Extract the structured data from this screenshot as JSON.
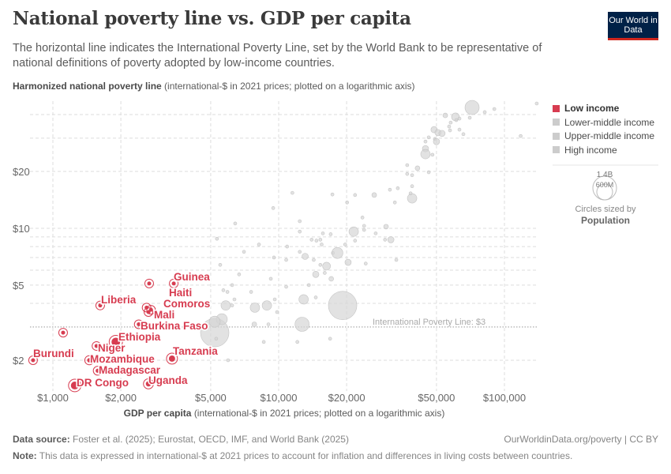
{
  "header": {
    "title": "National poverty line vs. GDP per capita",
    "subtitle": "The horizontal line indicates the International Poverty Line, set by the World Bank to be representative of national definitions of poverty adopted by low-income countries.",
    "logo_text": "Our World in Data"
  },
  "footer": {
    "source_label": "Data source:",
    "source_text": "Foster et al. (2025); Eurostat, OECD, IMF, and World Bank (2025)",
    "url": "OurWorldinData.org/poverty | CC BY",
    "note_label": "Note:",
    "note_text": "This data is expressed in international-$ at 2021 prices to account for inflation and differences in living costs between countries."
  },
  "chart_data": {
    "type": "scatter",
    "title": "National poverty line vs. GDP per capita",
    "ylabel_bold": "Harmonized national poverty line",
    "ylabel_rest": "(international-$ in 2021 prices; plotted on a logarithmic axis)",
    "xlabel_bold": "GDP per capita",
    "xlabel_rest": "(international-$ in 2021 prices; plotted on a logarithmic axis)",
    "x_scale": "log",
    "y_scale": "log",
    "xlim": [
      790,
      141000
    ],
    "ylim": [
      1.37,
      47
    ],
    "grid": true,
    "x_ticks": [
      {
        "v": 1000,
        "label": "$1,000"
      },
      {
        "v": 2000,
        "label": "$2,000"
      },
      {
        "v": 5000,
        "label": "$5,000"
      },
      {
        "v": 10000,
        "label": "$10,000"
      },
      {
        "v": 20000,
        "label": "$20,000"
      },
      {
        "v": 50000,
        "label": "$50,000"
      },
      {
        "v": 100000,
        "label": "$100,000"
      }
    ],
    "y_ticks": [
      {
        "v": 20,
        "label": "$20"
      },
      {
        "v": 10,
        "label": "$10"
      },
      {
        "v": 5,
        "label": "$5"
      },
      {
        "v": 2,
        "label": "$2"
      }
    ],
    "y_minor_grid": [
      40,
      30,
      9,
      8,
      7,
      6,
      4
    ],
    "reference_line": {
      "value": 3,
      "label": "International Poverty Line: $3"
    },
    "legend": {
      "placement": "right",
      "items": [
        {
          "label": "Low income",
          "color": "#d73c50",
          "active": true
        },
        {
          "label": "Lower-middle income",
          "color": "#cccccc",
          "active": false
        },
        {
          "label": "Upper-middle income",
          "color": "#cccccc",
          "active": false
        },
        {
          "label": "High income",
          "color": "#cccccc",
          "active": false
        }
      ],
      "size_title": "Circles sized by",
      "size_variable": "Population",
      "size_big_label": "1.4B",
      "size_small_label": "600M"
    },
    "point_fields": [
      "gdp_per_capita",
      "poverty_line",
      "population_millions"
    ],
    "low_income": [
      {
        "name": "Burundi",
        "x": 817,
        "y": 2.0,
        "pop": 13
      },
      {
        "name": "DR Congo",
        "x": 1250,
        "y": 1.47,
        "pop": 105
      },
      {
        "name": "Madagascar",
        "x": 1580,
        "y": 1.76,
        "pop": 30
      },
      {
        "name": "Mozambique",
        "x": 1450,
        "y": 2.0,
        "pop": 33
      },
      {
        "name": "Niger",
        "x": 1560,
        "y": 2.38,
        "pop": 26
      },
      {
        "name": "Ethiopia",
        "x": 1900,
        "y": 2.5,
        "pop": 126
      },
      {
        "name": "Burkina Faso",
        "x": 2400,
        "y": 3.1,
        "pop": 23
      },
      {
        "name": "Mali",
        "x": 2650,
        "y": 3.6,
        "pop": 24
      },
      {
        "name": "Comoros",
        "x": 2600,
        "y": 3.8,
        "pop": 1
      },
      {
        "name": "Haiti",
        "x": 2720,
        "y": 3.7,
        "pop": 12
      },
      {
        "name": "Liberia",
        "x": 1620,
        "y": 3.9,
        "pop": 5
      },
      {
        "name": "Guinea",
        "x": 3430,
        "y": 5.1,
        "pop": 14
      },
      {
        "name": "Tanzania",
        "x": 3370,
        "y": 2.04,
        "pop": 67
      },
      {
        "name": "Uganda",
        "x": 2650,
        "y": 1.5,
        "pop": 48
      },
      {
        "name": "",
        "x": 2670,
        "y": 5.1,
        "pop": 8
      },
      {
        "name": "",
        "x": 1110,
        "y": 2.8,
        "pop": 6
      }
    ],
    "other": [
      [
        5330,
        8.8,
        10
      ],
      [
        6420,
        10.6,
        10
      ],
      [
        5510,
        6.4,
        10
      ],
      [
        6680,
        5.7,
        10
      ],
      [
        8180,
        8.2,
        10
      ],
      [
        7020,
        7.5,
        10
      ],
      [
        6220,
        5.0,
        10
      ],
      [
        5690,
        4.7,
        10
      ],
      [
        5930,
        4.6,
        10
      ],
      [
        6370,
        4.2,
        10
      ],
      [
        7550,
        4.6,
        10
      ],
      [
        9230,
        5.4,
        10
      ],
      [
        5830,
        3.9,
        156
      ],
      [
        6220,
        3.9,
        10
      ],
      [
        7850,
        3.8,
        156
      ],
      [
        8870,
        3.9,
        156
      ],
      [
        9610,
        4.2,
        10
      ],
      [
        9840,
        3.6,
        10
      ],
      [
        7800,
        3.1,
        39
      ],
      [
        9010,
        3.1,
        10
      ],
      [
        8590,
        2.5,
        10
      ],
      [
        12100,
        2.5,
        10
      ],
      [
        16900,
        2.6,
        10
      ],
      [
        5970,
        2.0,
        10
      ],
      [
        10800,
        4.9,
        10
      ],
      [
        10900,
        8.0,
        10
      ],
      [
        9530,
        7.0,
        10
      ],
      [
        10800,
        6.8,
        10
      ],
      [
        12900,
        4.2,
        156
      ],
      [
        14600,
        4.3,
        10
      ],
      [
        12700,
        3.1,
        350
      ],
      [
        9460,
        12.8,
        10
      ],
      [
        11500,
        15.4,
        10
      ],
      [
        12400,
        10.9,
        10
      ],
      [
        12400,
        9.6,
        10
      ],
      [
        12400,
        7.5,
        10
      ],
      [
        13100,
        7.1,
        69
      ],
      [
        14300,
        6.8,
        10
      ],
      [
        14000,
        8.7,
        10
      ],
      [
        14700,
        8.6,
        10
      ],
      [
        15300,
        8.7,
        10
      ],
      [
        15500,
        8.2,
        10
      ],
      [
        15700,
        9.4,
        10
      ],
      [
        17000,
        9.3,
        10
      ],
      [
        13600,
        5.0,
        10
      ],
      [
        15300,
        6.4,
        10
      ],
      [
        16300,
        6.3,
        108
      ],
      [
        16000,
        5.8,
        10
      ],
      [
        14600,
        5.7,
        69
      ],
      [
        17100,
        5.4,
        39
      ],
      [
        17400,
        7.4,
        10
      ],
      [
        18200,
        7.4,
        212
      ],
      [
        19700,
        8.2,
        10
      ],
      [
        20300,
        6.6,
        69
      ],
      [
        21500,
        9.6,
        156
      ],
      [
        23900,
        10.3,
        10
      ],
      [
        23900,
        9.8,
        10
      ],
      [
        23500,
        11.4,
        10
      ],
      [
        24300,
        6.5,
        10
      ],
      [
        21800,
        8.6,
        10
      ],
      [
        26900,
        9.4,
        10
      ],
      [
        29900,
        10.2,
        39
      ],
      [
        29600,
        8.7,
        10
      ],
      [
        31400,
        8.7,
        69
      ],
      [
        33200,
        6.8,
        10
      ],
      [
        26500,
        15.0,
        39
      ],
      [
        21800,
        15.0,
        10
      ],
      [
        20100,
        13.7,
        10
      ],
      [
        17300,
        15.1,
        10
      ],
      [
        31100,
        16.0,
        10
      ],
      [
        33700,
        16.3,
        10
      ],
      [
        32700,
        13.7,
        10
      ],
      [
        39000,
        14.4,
        156
      ],
      [
        39000,
        16.7,
        10
      ],
      [
        38400,
        15.3,
        10
      ],
      [
        37100,
        21.6,
        10
      ],
      [
        37100,
        19.4,
        10
      ],
      [
        39000,
        19.1,
        10
      ],
      [
        41200,
        20.8,
        39
      ],
      [
        46200,
        19.8,
        10
      ],
      [
        44700,
        28.8,
        10
      ],
      [
        44700,
        26.4,
        69
      ],
      [
        44700,
        24.7,
        156
      ],
      [
        48000,
        24.5,
        10
      ],
      [
        46200,
        30.3,
        10
      ],
      [
        48800,
        33.3,
        69
      ],
      [
        50800,
        32.1,
        69
      ],
      [
        52900,
        31.8,
        69
      ],
      [
        49200,
        29.7,
        10
      ],
      [
        50000,
        28.8,
        69
      ],
      [
        54700,
        39.6,
        39
      ],
      [
        57800,
        36.3,
        10
      ],
      [
        56900,
        34.6,
        10
      ],
      [
        57400,
        33.0,
        10
      ],
      [
        60700,
        38.9,
        108
      ],
      [
        61200,
        37.4,
        10
      ],
      [
        63200,
        38.1,
        10
      ],
      [
        63200,
        33.3,
        10
      ],
      [
        65800,
        31.5,
        10
      ],
      [
        71900,
        43.6,
        350
      ],
      [
        70200,
        38.5,
        10
      ],
      [
        81800,
        41.2,
        10
      ],
      [
        90200,
        42.8,
        10
      ],
      [
        118000,
        30.8,
        10
      ],
      [
        139000,
        45.8,
        10
      ],
      [
        19200,
        3.9,
        1400
      ],
      [
        5210,
        2.8,
        1400
      ],
      [
        5600,
        3.3,
        212
      ],
      [
        5210,
        3.2,
        212
      ],
      [
        5290,
        2.6,
        10
      ]
    ]
  }
}
